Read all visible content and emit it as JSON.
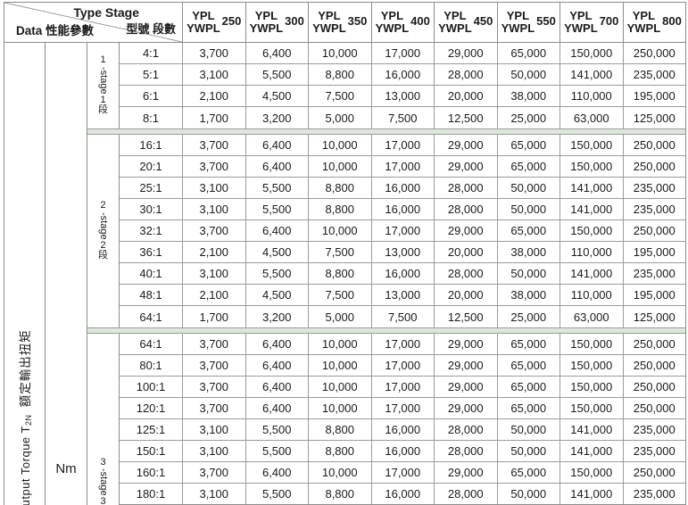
{
  "header": {
    "corner": {
      "type_stage_en": "Type Stage",
      "type_stage_zh": "型號 段數",
      "data_label": "Data 性能參數"
    },
    "model_line1": "YPL",
    "model_line2": "YWPL",
    "sizes": [
      "250",
      "300",
      "350",
      "400",
      "450",
      "550",
      "700",
      "800"
    ]
  },
  "left_labels": {
    "torque_prefix": "Output Torque T",
    "torque_sub": "2N",
    "torque_zh": "額定輸出扭矩",
    "unit": "Nm"
  },
  "colors": {
    "separator_green": "#dbead8",
    "grid_line": "#8c8c8c"
  },
  "groups": [
    {
      "stage": {
        "digit": "1",
        "word": "-stage",
        "digit2": "1",
        "han": "段"
      },
      "rows": [
        {
          "ratio": "4:1",
          "values": [
            "3,700",
            "6,400",
            "10,000",
            "17,000",
            "29,000",
            "65,000",
            "150,000",
            "250,000"
          ]
        },
        {
          "ratio": "5:1",
          "values": [
            "3,100",
            "5,500",
            "8,800",
            "16,000",
            "28,000",
            "50,000",
            "141,000",
            "235,000"
          ]
        },
        {
          "ratio": "6:1",
          "values": [
            "2,100",
            "4,500",
            "7,500",
            "13,000",
            "20,000",
            "38,000",
            "110,000",
            "195,000"
          ]
        },
        {
          "ratio": "8:1",
          "values": [
            "1,700",
            "3,200",
            "5,000",
            "7,500",
            "12,500",
            "25,000",
            "63,000",
            "125,000"
          ]
        }
      ]
    },
    {
      "stage": {
        "digit": "2",
        "word": "-stage",
        "digit2": "2",
        "han": "段"
      },
      "rows": [
        {
          "ratio": "16:1",
          "values": [
            "3,700",
            "6,400",
            "10,000",
            "17,000",
            "29,000",
            "65,000",
            "150,000",
            "250,000"
          ]
        },
        {
          "ratio": "20:1",
          "values": [
            "3,700",
            "6,400",
            "10,000",
            "17,000",
            "29,000",
            "65,000",
            "150,000",
            "250,000"
          ]
        },
        {
          "ratio": "25:1",
          "values": [
            "3,100",
            "5,500",
            "8,800",
            "16,000",
            "28,000",
            "50,000",
            "141,000",
            "235,000"
          ]
        },
        {
          "ratio": "30:1",
          "values": [
            "3,100",
            "5,500",
            "8,800",
            "16,000",
            "28,000",
            "50,000",
            "141,000",
            "235,000"
          ]
        },
        {
          "ratio": "32:1",
          "values": [
            "3,700",
            "6,400",
            "10,000",
            "17,000",
            "29,000",
            "65,000",
            "150,000",
            "250,000"
          ]
        },
        {
          "ratio": "36:1",
          "values": [
            "2,100",
            "4,500",
            "7,500",
            "13,000",
            "20,000",
            "38,000",
            "110,000",
            "195,000"
          ]
        },
        {
          "ratio": "40:1",
          "values": [
            "3,100",
            "5,500",
            "8,800",
            "16,000",
            "28,000",
            "50,000",
            "141,000",
            "235,000"
          ]
        },
        {
          "ratio": "48:1",
          "values": [
            "2,100",
            "4,500",
            "7,500",
            "13,000",
            "20,000",
            "38,000",
            "110,000",
            "195,000"
          ]
        },
        {
          "ratio": "64:1",
          "values": [
            "1,700",
            "3,200",
            "5,000",
            "7,500",
            "12,500",
            "25,000",
            "63,000",
            "125,000"
          ]
        }
      ]
    },
    {
      "stage": {
        "digit": "3",
        "word": "-stage",
        "digit2": "3",
        "han": "段"
      },
      "rows": [
        {
          "ratio": "64:1",
          "values": [
            "3,700",
            "6,400",
            "10,000",
            "17,000",
            "29,000",
            "65,000",
            "150,000",
            "250,000"
          ]
        },
        {
          "ratio": "80:1",
          "values": [
            "3,700",
            "6,400",
            "10,000",
            "17,000",
            "29,000",
            "65,000",
            "150,000",
            "250,000"
          ]
        },
        {
          "ratio": "100:1",
          "values": [
            "3,700",
            "6,400",
            "10,000",
            "17,000",
            "29,000",
            "65,000",
            "150,000",
            "250,000"
          ]
        },
        {
          "ratio": "120:1",
          "values": [
            "3,700",
            "6,400",
            "10,000",
            "17,000",
            "29,000",
            "65,000",
            "150,000",
            "250,000"
          ]
        },
        {
          "ratio": "125:1",
          "values": [
            "3,100",
            "5,500",
            "8,800",
            "16,000",
            "28,000",
            "50,000",
            "141,000",
            "235,000"
          ]
        },
        {
          "ratio": "150:1",
          "values": [
            "3,100",
            "5,500",
            "8,800",
            "16,000",
            "28,000",
            "50,000",
            "141,000",
            "235,000"
          ]
        },
        {
          "ratio": "160:1",
          "values": [
            "3,700",
            "6,400",
            "10,000",
            "17,000",
            "29,000",
            "65,000",
            "150,000",
            "250,000"
          ]
        },
        {
          "ratio": "180:1",
          "values": [
            "3,100",
            "5,500",
            "8,800",
            "16,000",
            "28,000",
            "50,000",
            "141,000",
            "235,000"
          ]
        }
      ]
    }
  ]
}
